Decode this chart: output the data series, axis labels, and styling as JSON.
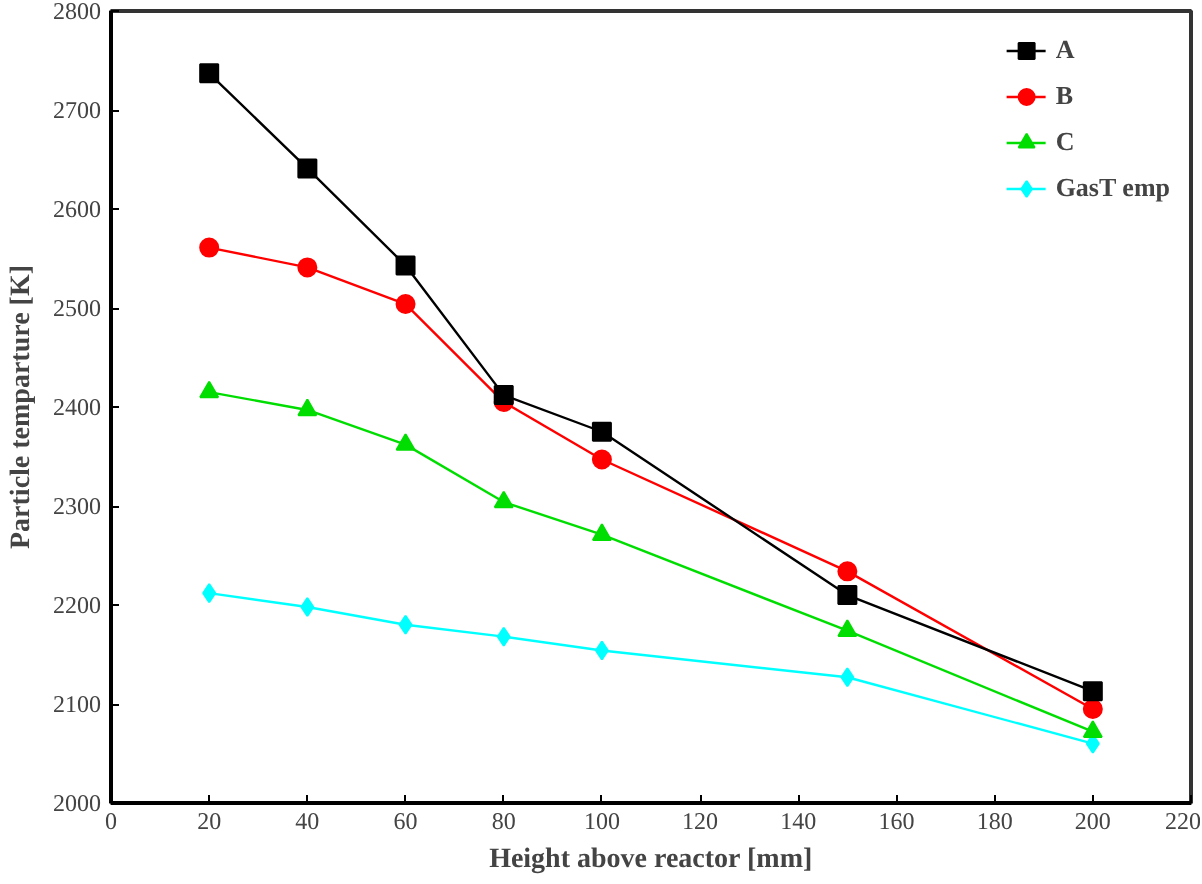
{
  "chart_data": {
    "type": "line",
    "xlabel": "Height above reactor [mm]",
    "ylabel": "Particle temparture [K]",
    "x": [
      20,
      40,
      60,
      80,
      100,
      150,
      200
    ],
    "series": [
      {
        "name": "A",
        "color": "#000000",
        "marker": "square",
        "values": [
          2737,
          2641,
          2543,
          2412,
          2375,
          2210,
          2113
        ]
      },
      {
        "name": "B",
        "color": "#ff0000",
        "marker": "circle",
        "values": [
          2561,
          2541,
          2504,
          2405,
          2347,
          2234,
          2095
        ]
      },
      {
        "name": "C",
        "color": "#00dd00",
        "marker": "triangle",
        "values": [
          2415,
          2397,
          2362,
          2304,
          2271,
          2174,
          2072
        ]
      },
      {
        "name": "GasT emp",
        "color": "#00ffff",
        "marker": "diamond",
        "values": [
          2212,
          2198,
          2180,
          2168,
          2154,
          2127,
          2060
        ]
      }
    ],
    "xlim": [
      0,
      220
    ],
    "xticks": [
      0,
      20,
      40,
      60,
      80,
      100,
      120,
      140,
      160,
      180,
      200,
      220
    ],
    "ylim": [
      2000,
      2800
    ],
    "yticks": [
      2000,
      2100,
      2200,
      2300,
      2400,
      2500,
      2600,
      2700,
      2800
    ],
    "grid": false,
    "legend": "top right"
  }
}
